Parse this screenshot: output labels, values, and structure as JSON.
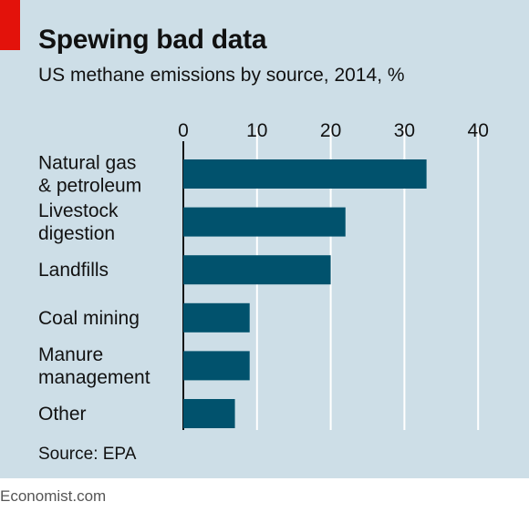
{
  "header": {
    "title": "Spewing bad data",
    "subtitle": "US methane emissions by source, 2014, %"
  },
  "footer": {
    "source": "Source: EPA",
    "brand": "Economist.com"
  },
  "colors": {
    "background": "#cddee7",
    "bar": "#01526d",
    "accent": "#e3120b",
    "gridline": "#ffffff",
    "axis": "#111111"
  },
  "chart_data": {
    "type": "bar",
    "orientation": "horizontal",
    "title": "Spewing bad data",
    "subtitle": "US methane emissions by source, 2014, %",
    "categories": [
      [
        "Natural gas",
        "& petroleum"
      ],
      [
        "Livestock",
        "digestion"
      ],
      [
        "Landfills"
      ],
      [
        "Coal mining"
      ],
      [
        "Manure",
        "management"
      ],
      [
        "Other"
      ]
    ],
    "values": [
      33,
      22,
      20,
      9,
      9,
      7
    ],
    "xlim": [
      0,
      40
    ],
    "xticks": [
      0,
      10,
      20,
      30,
      40
    ],
    "tick_position": "top",
    "grid": true
  }
}
